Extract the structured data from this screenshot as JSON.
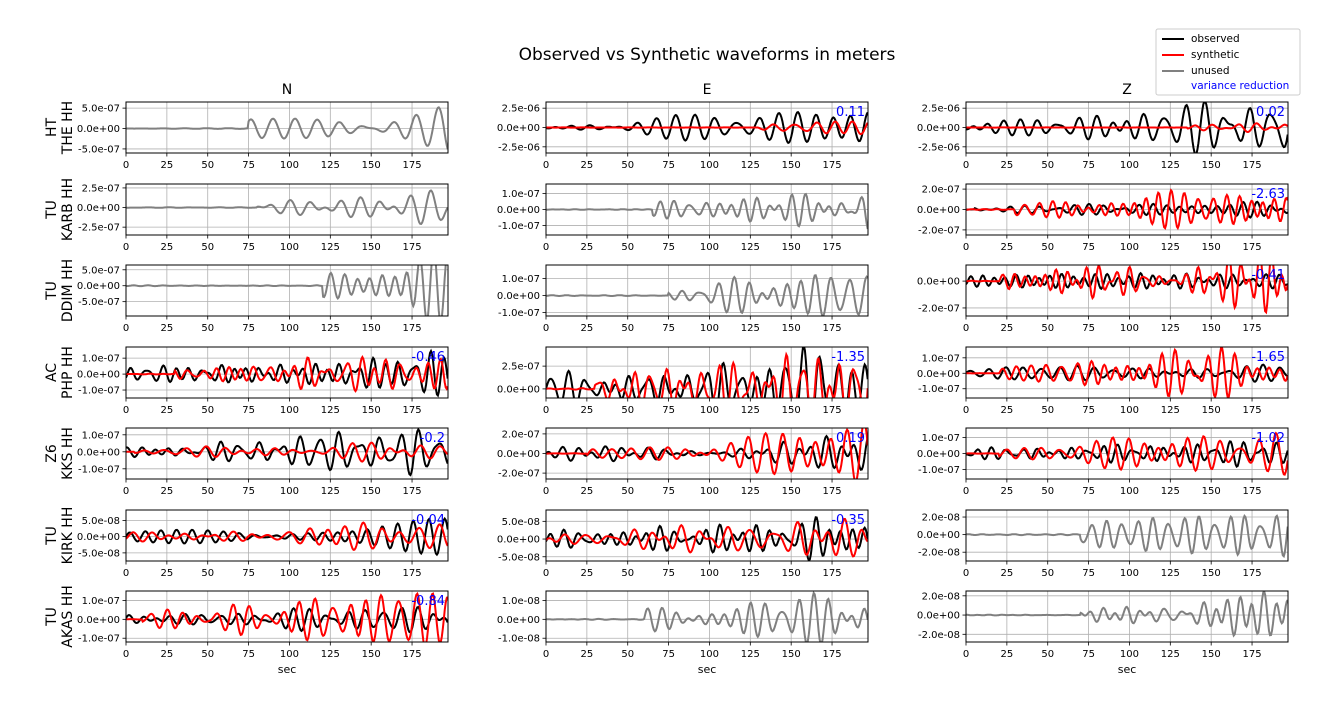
{
  "title": "Observed vs Synthetic waveforms in meters",
  "legend": {
    "placement": "top-right",
    "items": [
      {
        "label": "observed",
        "color": "#000000"
      },
      {
        "label": "synthetic",
        "color": "#ff0000"
      },
      {
        "label": "unused",
        "color": "#808080"
      },
      {
        "label": "variance reduction",
        "color": "#0000ff",
        "text_only": true
      }
    ]
  },
  "colors": {
    "observed": "#000000",
    "synthetic": "#ff0000",
    "unused": "#808080",
    "vr": "#0000ff",
    "grid": "#b0b0b0"
  },
  "chart_data": {
    "type": "line",
    "grid": true,
    "xlabel": "sec",
    "xlim": [
      0,
      197
    ],
    "xticks": [
      0,
      25,
      50,
      75,
      100,
      125,
      150,
      175
    ],
    "columns": [
      "N",
      "E",
      "Z"
    ],
    "rows": [
      {
        "net": "HT",
        "sta": "THE HH",
        "panels": [
          {
            "used": false,
            "vr": "",
            "ylim": [
              -6e-07,
              6.5e-07
            ],
            "yticks": [
              "5.0e-07",
              "0.0e+00",
              "-5.0e-07"
            ],
            "ytickvals": [
              5e-07,
              0,
              -5e-07
            ],
            "obs": {
              "amp": 6.5e-07,
              "onset": 75,
              "period": 12,
              "seed": 1
            }
          },
          {
            "used": true,
            "vr": "0.11",
            "ylim": [
              -3.3e-06,
              3.3e-06
            ],
            "yticks": [
              "2.5e-06",
              "0.0e+00",
              "-2.5e-06"
            ],
            "ytickvals": [
              2.5e-06,
              0,
              -2.5e-06
            ],
            "obs": {
              "amp": 3e-06,
              "onset": 0,
              "period": 11,
              "seed": 2
            },
            "syn": {
              "amp": 1.1e-06,
              "onset": 130,
              "period": 11,
              "seed": 3
            }
          },
          {
            "used": true,
            "vr": "0.02",
            "ylim": [
              -3.3e-06,
              3.3e-06
            ],
            "yticks": [
              "2.5e-06",
              "0.0e+00",
              "-2.5e-06"
            ],
            "ytickvals": [
              2.5e-06,
              0,
              -2.5e-06
            ],
            "obs": {
              "amp": 3.2e-06,
              "onset": 0,
              "period": 12,
              "seed": 4
            },
            "syn": {
              "amp": 8e-07,
              "onset": 135,
              "period": 11,
              "seed": 5
            }
          }
        ]
      },
      {
        "net": "TU",
        "sta": "KARB HH",
        "panels": [
          {
            "used": false,
            "vr": "",
            "ylim": [
              -3.5e-07,
              3e-07
            ],
            "yticks": [
              "2.5e-07",
              "0.0e+00",
              "-2.5e-07"
            ],
            "ytickvals": [
              2.5e-07,
              0,
              -2.5e-07
            ],
            "obs": {
              "amp": 3.2e-07,
              "onset": 80,
              "period": 14,
              "seed": 6
            }
          },
          {
            "used": false,
            "vr": "",
            "ylim": [
              -1.6e-07,
              1.6e-07
            ],
            "yticks": [
              "1.0e-07",
              "0.0e+00",
              "-1.0e-07"
            ],
            "ytickvals": [
              1e-07,
              0,
              -1e-07
            ],
            "obs": {
              "amp": 1.5e-07,
              "onset": 65,
              "period": 8,
              "seed": 7
            }
          },
          {
            "used": true,
            "vr": "-2.63",
            "ylim": [
              -2.5e-07,
              2.5e-07
            ],
            "yticks": [
              "2.0e-07",
              "0.0e+00",
              "-2.0e-07"
            ],
            "ytickvals": [
              2e-07,
              0,
              -2e-07
            ],
            "obs": {
              "amp": 1e-07,
              "onset": 5,
              "period": 8,
              "seed": 8
            },
            "syn": {
              "amp": 2.3e-07,
              "onset": 30,
              "period": 8,
              "seed": 9
            }
          }
        ]
      },
      {
        "net": "TU",
        "sta": "DDIM HH",
        "panels": [
          {
            "used": false,
            "vr": "",
            "ylim": [
              -9.5e-07,
              6.5e-07
            ],
            "yticks": [
              "5.0e-07",
              "0.0e+00",
              "-5.0e-07"
            ],
            "ytickvals": [
              5e-07,
              0,
              -5e-07
            ],
            "obs": {
              "amp": 9e-07,
              "onset": 120,
              "period": 10,
              "seed": 10
            }
          },
          {
            "used": false,
            "vr": "",
            "ylim": [
              -1.2e-07,
              1.8e-07
            ],
            "yticks": [
              "1.0e-07",
              "0.0e+00",
              "-1.0e-07"
            ],
            "ytickvals": [
              1e-07,
              0,
              -1e-07
            ],
            "obs": {
              "amp": 1.7e-07,
              "onset": 75,
              "period": 9,
              "seed": 11
            }
          },
          {
            "used": true,
            "vr": "-0.41",
            "ylim": [
              -2.6e-07,
              1.2e-07
            ],
            "yticks": [
              "0.0e+00",
              "-2.0e-07"
            ],
            "ytickvals": [
              0,
              -2e-07
            ],
            "obs": {
              "amp": 1e-07,
              "onset": 0,
              "period": 8,
              "seed": 12
            },
            "syn": {
              "amp": 2.2e-07,
              "onset": 20,
              "period": 8,
              "seed": 13
            }
          }
        ]
      },
      {
        "net": "AC",
        "sta": "PHP HH",
        "panels": [
          {
            "used": true,
            "vr": "-0.46",
            "ylim": [
              -1.5e-07,
              1.7e-07
            ],
            "yticks": [
              "1.0e-07",
              "0.0e+00",
              "-1.0e-07"
            ],
            "ytickvals": [
              1e-07,
              0,
              -1e-07
            ],
            "obs": {
              "amp": 1.3e-07,
              "onset": 0,
              "period": 9,
              "seed": 14
            },
            "syn": {
              "amp": 1.3e-07,
              "onset": 30,
              "period": 9,
              "seed": 15
            }
          },
          {
            "used": true,
            "vr": "-1.35",
            "ylim": [
              -1e-07,
              4.6e-07
            ],
            "yticks": [
              "2.5e-07",
              "0.0e+00"
            ],
            "ytickvals": [
              2.5e-07,
              0
            ],
            "obs": {
              "amp": 4e-07,
              "onset": 0,
              "period": 9,
              "seed": 16
            },
            "syn": {
              "amp": 4.5e-07,
              "onset": 30,
              "period": 8,
              "seed": 17
            }
          },
          {
            "used": true,
            "vr": "-1.65",
            "ylim": [
              -1.6e-07,
              1.7e-07
            ],
            "yticks": [
              "1.0e-07",
              "0.0e+00",
              "-1.0e-07"
            ],
            "ytickvals": [
              1e-07,
              0,
              -1e-07
            ],
            "obs": {
              "amp": 7e-08,
              "onset": 0,
              "period": 9,
              "seed": 18
            },
            "syn": {
              "amp": 1.7e-07,
              "onset": 20,
              "period": 8,
              "seed": 19
            }
          }
        ]
      },
      {
        "net": "Z6",
        "sta": "KKS HH",
        "panels": [
          {
            "used": true,
            "vr": "-0.2",
            "ylim": [
              -1.6e-07,
              1.4e-07
            ],
            "yticks": [
              "1.0e-07",
              "0.0e+00",
              "-1.0e-07"
            ],
            "ytickvals": [
              1e-07,
              0,
              -1e-07
            ],
            "obs": {
              "amp": 1.4e-07,
              "onset": 0,
              "period": 10,
              "seed": 20
            },
            "syn": {
              "amp": 6e-08,
              "onset": 5,
              "period": 11,
              "seed": 21
            }
          },
          {
            "used": true,
            "vr": "0.19",
            "ylim": [
              -2.6e-07,
              2.6e-07
            ],
            "yticks": [
              "2.0e-07",
              "0.0e+00",
              "-2.0e-07"
            ],
            "ytickvals": [
              2e-07,
              0,
              -2e-07
            ],
            "obs": {
              "amp": 1.8e-07,
              "onset": 0,
              "period": 11,
              "seed": 22
            },
            "syn": {
              "amp": 2.4e-07,
              "onset": 25,
              "period": 9,
              "seed": 23
            }
          },
          {
            "used": true,
            "vr": "-1.02",
            "ylim": [
              -1.6e-07,
              1.6e-07
            ],
            "yticks": [
              "1.0e-07",
              "0.0e+00",
              "-1.0e-07"
            ],
            "ytickvals": [
              1e-07,
              0,
              -1e-07
            ],
            "obs": {
              "amp": 1e-07,
              "onset": 0,
              "period": 8,
              "seed": 24
            },
            "syn": {
              "amp": 1.5e-07,
              "onset": 20,
              "period": 9,
              "seed": 25
            }
          }
        ]
      },
      {
        "net": "TU",
        "sta": "KIRK HH",
        "panels": [
          {
            "used": true,
            "vr": "-0.04",
            "ylim": [
              -7.5e-08,
              8.2e-08
            ],
            "yticks": [
              "5.0e-08",
              "0.0e+00",
              "-5.0e-08"
            ],
            "ytickvals": [
              5e-08,
              0,
              -5e-08
            ],
            "obs": {
              "amp": 7.5e-08,
              "onset": 0,
              "period": 10,
              "seed": 26
            },
            "syn": {
              "amp": 4.5e-08,
              "onset": 0,
              "period": 12,
              "seed": 27
            }
          },
          {
            "used": true,
            "vr": "-0.35",
            "ylim": [
              -6.2e-08,
              8.2e-08
            ],
            "yticks": [
              "5.0e-08",
              "0.0e+00",
              "-5.0e-08"
            ],
            "ytickvals": [
              5e-08,
              0,
              -5e-08
            ],
            "obs": {
              "amp": 6e-08,
              "onset": 0,
              "period": 9,
              "seed": 28
            },
            "syn": {
              "amp": 5e-08,
              "onset": 0,
              "period": 11,
              "seed": 29
            }
          },
          {
            "used": false,
            "vr": "",
            "ylim": [
              -3e-08,
              2.8e-08
            ],
            "yticks": [
              "2.0e-08",
              "0.0e+00",
              "-2.0e-08"
            ],
            "ytickvals": [
              2e-08,
              0,
              -2e-08
            ],
            "obs": {
              "amp": 2.7e-08,
              "onset": 70,
              "period": 8,
              "seed": 30
            }
          }
        ]
      },
      {
        "net": "TU",
        "sta": "AKAS HH",
        "panels": [
          {
            "used": true,
            "vr": "-0.84",
            "ylim": [
              -1.2e-07,
              1.5e-07
            ],
            "yticks": [
              "1.0e-07",
              "0.0e+00",
              "-1.0e-07"
            ],
            "ytickvals": [
              1e-07,
              0,
              -1e-07
            ],
            "obs": {
              "amp": 6e-08,
              "onset": 0,
              "period": 10,
              "seed": 31
            },
            "syn": {
              "amp": 1.4e-07,
              "onset": 10,
              "period": 10,
              "seed": 32
            }
          },
          {
            "used": false,
            "vr": "",
            "ylim": [
              -1.2e-08,
              1.5e-08
            ],
            "yticks": [
              "1.0e-08",
              "0.0e+00",
              "-1.0e-08"
            ],
            "ytickvals": [
              1e-08,
              0,
              -1e-08
            ],
            "obs": {
              "amp": 1.4e-08,
              "onset": 60,
              "period": 10,
              "seed": 33
            }
          },
          {
            "used": false,
            "vr": "",
            "ylim": [
              -2.8e-08,
              2.5e-08
            ],
            "yticks": [
              "2.0e-08",
              "0.0e+00",
              "-2.0e-08"
            ],
            "ytickvals": [
              2e-08,
              0,
              -2e-08
            ],
            "obs": {
              "amp": 2.5e-08,
              "onset": 70,
              "period": 9,
              "seed": 34
            }
          }
        ]
      }
    ]
  }
}
